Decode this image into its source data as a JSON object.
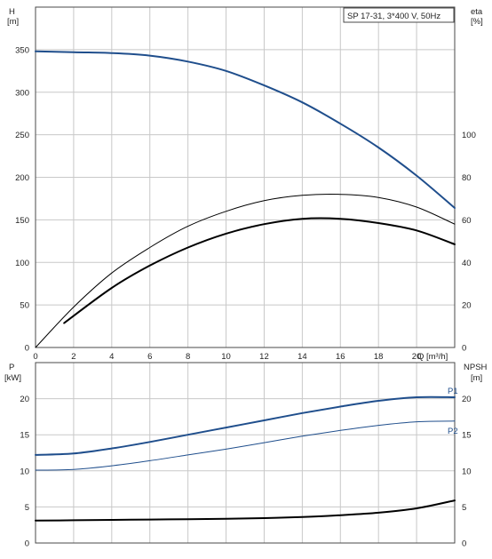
{
  "pump_label": "SP 17-31, 3*400 V, 50Hz",
  "colors": {
    "blue": "#1f4e8c",
    "black": "#000000",
    "grid": "#c8c8c8"
  },
  "chart_data": [
    {
      "type": "line",
      "panel": "top",
      "left_axis": {
        "label": "H",
        "unit": "[m]",
        "ylim": [
          0,
          400
        ],
        "ticks": [
          0,
          50,
          100,
          150,
          200,
          250,
          300,
          350
        ]
      },
      "right_axis": {
        "label": "eta",
        "unit": "[%]",
        "ylim": [
          0,
          160
        ],
        "ticks": [
          0,
          20,
          40,
          60,
          80,
          100
        ]
      },
      "x_axis": {
        "label": "Q",
        "unit": "[m³/h]",
        "xlim": [
          0,
          22
        ],
        "ticks": [
          0,
          2,
          4,
          6,
          8,
          10,
          12,
          14,
          16,
          18,
          20
        ]
      },
      "series": [
        {
          "id": "head",
          "axis": "left",
          "color": "#1f4e8c",
          "width": 2,
          "x": [
            0,
            2,
            4,
            6,
            8,
            10,
            12,
            14,
            16,
            18,
            20,
            22
          ],
          "y": [
            348,
            347,
            346,
            343,
            336,
            325,
            308,
            288,
            263,
            235,
            202,
            164
          ]
        },
        {
          "id": "eta-1",
          "axis": "right",
          "color": "#000000",
          "width": 1,
          "x": [
            0,
            2,
            4,
            6,
            8,
            10,
            12,
            14,
            16,
            18,
            20,
            22
          ],
          "y": [
            0,
            19,
            35,
            47,
            57,
            64,
            69,
            71.5,
            72,
            70.5,
            66,
            58
          ]
        },
        {
          "id": "eta-2",
          "axis": "right",
          "color": "#000000",
          "width": 2,
          "x": [
            1.5,
            4,
            6,
            8,
            10,
            12,
            14,
            16,
            18,
            20,
            22
          ],
          "y": [
            11.5,
            28,
            38.5,
            47,
            53.5,
            58,
            60.5,
            60.5,
            58.5,
            55,
            48.5
          ]
        }
      ]
    },
    {
      "type": "line",
      "panel": "bottom",
      "left_axis": {
        "label": "P",
        "unit": "[kW]",
        "ylim": [
          0,
          25
        ],
        "ticks": [
          0,
          5,
          10,
          15,
          20
        ]
      },
      "right_axis": {
        "label": "NPSH",
        "unit": "[m]",
        "ylim": [
          0,
          25
        ],
        "ticks": [
          0,
          5,
          10,
          15,
          20
        ]
      },
      "x_axis": {
        "xlim": [
          0,
          22
        ],
        "ticks": [
          0,
          2,
          4,
          6,
          8,
          10,
          12,
          14,
          16,
          18,
          20
        ]
      },
      "series": [
        {
          "id": "P1",
          "name": "P1",
          "axis": "left",
          "color": "#1f4e8c",
          "width": 2,
          "x": [
            0,
            2,
            4,
            6,
            8,
            10,
            12,
            14,
            16,
            18,
            20,
            22
          ],
          "y": [
            12.2,
            12.4,
            13.1,
            14,
            15,
            16,
            17,
            18,
            18.9,
            19.7,
            20.2,
            20.2
          ]
        },
        {
          "id": "P2",
          "name": "P2",
          "axis": "left",
          "color": "#1f4e8c",
          "width": 1,
          "x": [
            0,
            2,
            4,
            6,
            8,
            10,
            12,
            14,
            16,
            18,
            20,
            22
          ],
          "y": [
            10.1,
            10.2,
            10.7,
            11.4,
            12.2,
            13,
            13.9,
            14.8,
            15.6,
            16.3,
            16.8,
            16.9
          ]
        },
        {
          "id": "npsh",
          "axis": "right",
          "color": "#000000",
          "width": 2,
          "x": [
            0,
            2,
            4,
            6,
            8,
            10,
            12,
            14,
            16,
            18,
            20,
            22
          ],
          "y": [
            3.1,
            3.15,
            3.2,
            3.25,
            3.3,
            3.35,
            3.45,
            3.6,
            3.85,
            4.2,
            4.8,
            5.9
          ]
        }
      ]
    }
  ]
}
